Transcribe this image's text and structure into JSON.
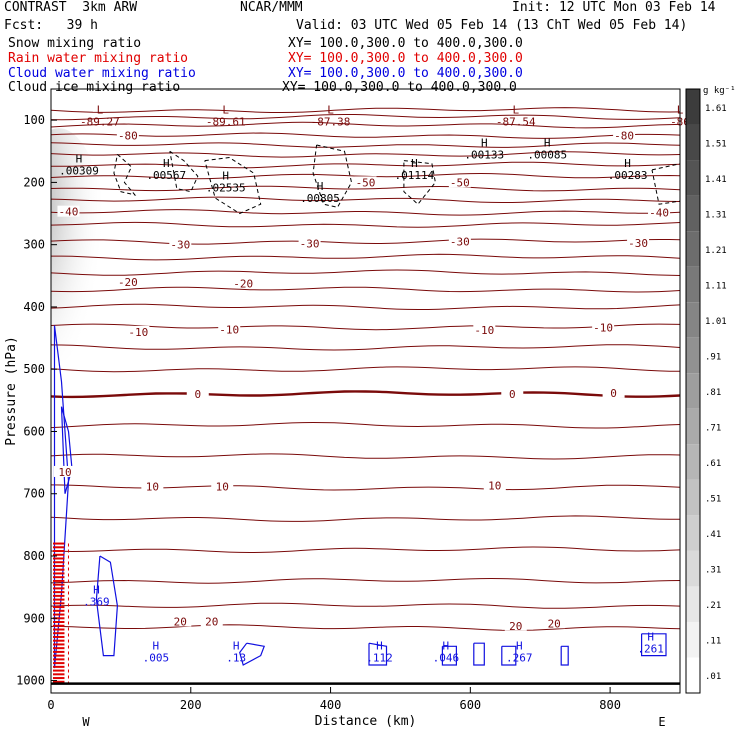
{
  "header": {
    "model": "CONTRAST  3km ARW",
    "center": "NCAR/MMM",
    "init": "Init: 12 UTC Mon 03 Feb 14",
    "fcst": "Fcst:   39 h",
    "valid": "Valid: 03 UTC Wed 05 Feb 14 (13 ChT Wed 05 Feb 14)"
  },
  "fields": [
    {
      "label": "Snow mixing ratio",
      "xy": "XY= 100.0,300.0 to 400.0,300.0",
      "color": "#000000"
    },
    {
      "label": "Rain water mixing ratio",
      "xy": "XY= 100.0,300.0 to 400.0,300.0",
      "color": "#e00000"
    },
    {
      "label": "Cloud water mixing ratio",
      "xy": "XY= 100.0,300.0 to 400.0,300.0",
      "color": "#0000e0"
    },
    {
      "label": "Cloud ice mixing ratio",
      "xy": "XY= 100.0,300.0 to 400.0,300.0",
      "color": "#000000"
    }
  ],
  "colors": {
    "temperature": "#7a0a0a",
    "cloud_water": "#1010e0",
    "rain": "#e00000",
    "ice": "#000000"
  },
  "chart_data": {
    "type": "contour cross-section",
    "xlabel": "Distance (km)",
    "ylabel": "Pressure (hPa)",
    "xlim": [
      0,
      900
    ],
    "ylim": [
      1020,
      50
    ],
    "x_ticks": [
      "0",
      "200",
      "400",
      "600",
      "800"
    ],
    "y_ticks": [
      "100",
      "200",
      "300",
      "400",
      "500",
      "600",
      "700",
      "800",
      "900",
      "1000"
    ],
    "x_end_labels": {
      "left": "W",
      "right": "E"
    },
    "colorbar": {
      "unit": "g kg⁻¹",
      "ticks": [
        "1.61",
        "1.51",
        "1.41",
        "1.31",
        "1.21",
        "1.11",
        "1.01",
        ".91",
        ".81",
        ".71",
        ".61",
        ".51",
        ".41",
        ".31",
        ".21",
        ".11",
        ".01"
      ]
    },
    "isotherms": [
      {
        "p": 84,
        "label": ""
      },
      {
        "p": 95,
        "label": ""
      },
      {
        "p": 108,
        "label": ""
      },
      {
        "p": 125,
        "label": "-80"
      },
      {
        "p": 140,
        "label": ""
      },
      {
        "p": 155,
        "label": ""
      },
      {
        "p": 172,
        "label": ""
      },
      {
        "p": 190,
        "label": ""
      },
      {
        "p": 210,
        "label": "-50"
      },
      {
        "p": 228,
        "label": ""
      },
      {
        "p": 248,
        "label": "-40"
      },
      {
        "p": 268,
        "label": ""
      },
      {
        "p": 295,
        "label": "-30"
      },
      {
        "p": 320,
        "label": ""
      },
      {
        "p": 345,
        "label": ""
      },
      {
        "p": 372,
        "label": "-20"
      },
      {
        "p": 400,
        "label": ""
      },
      {
        "p": 432,
        "label": ""
      },
      {
        "p": 465,
        "label": "-10"
      },
      {
        "p": 500,
        "label": ""
      },
      {
        "p": 540,
        "label": "0",
        "bold": true
      },
      {
        "p": 590,
        "label": ""
      },
      {
        "p": 640,
        "label": ""
      },
      {
        "p": 690,
        "label": "10"
      },
      {
        "p": 740,
        "label": ""
      },
      {
        "p": 790,
        "label": ""
      },
      {
        "p": 840,
        "label": ""
      },
      {
        "p": 880,
        "label": ""
      },
      {
        "p": 915,
        "label": "20"
      }
    ],
    "isotherm_labels": [
      {
        "x": 110,
        "p": 125,
        "text": "-80"
      },
      {
        "x": 820,
        "p": 125,
        "text": "-80"
      },
      {
        "x": 450,
        "p": 200,
        "text": "-50"
      },
      {
        "x": 585,
        "p": 200,
        "text": "-50"
      },
      {
        "x": 25,
        "p": 247,
        "text": "-40"
      },
      {
        "x": 870,
        "p": 248,
        "text": "-40"
      },
      {
        "x": 185,
        "p": 300,
        "text": "-30"
      },
      {
        "x": 370,
        "p": 298,
        "text": "-30"
      },
      {
        "x": 585,
        "p": 295,
        "text": "-30"
      },
      {
        "x": 840,
        "p": 297,
        "text": "-30"
      },
      {
        "x": 110,
        "p": 360,
        "text": "-20"
      },
      {
        "x": 275,
        "p": 362,
        "text": "-20"
      },
      {
        "x": 125,
        "p": 440,
        "text": "-10"
      },
      {
        "x": 255,
        "p": 436,
        "text": "-10"
      },
      {
        "x": 620,
        "p": 437,
        "text": "-10"
      },
      {
        "x": 790,
        "p": 433,
        "text": "-10"
      },
      {
        "x": 210,
        "p": 540,
        "text": "0"
      },
      {
        "x": 660,
        "p": 540,
        "text": "0"
      },
      {
        "x": 805,
        "p": 538,
        "text": "0"
      },
      {
        "x": 20,
        "p": 665,
        "text": "10"
      },
      {
        "x": 145,
        "p": 688,
        "text": "10"
      },
      {
        "x": 245,
        "p": 688,
        "text": "10"
      },
      {
        "x": 635,
        "p": 687,
        "text": "10"
      },
      {
        "x": 185,
        "p": 905,
        "text": "20"
      },
      {
        "x": 230,
        "p": 905,
        "text": "20"
      },
      {
        "x": 665,
        "p": 912,
        "text": "20"
      },
      {
        "x": 720,
        "p": 908,
        "text": "20"
      }
    ],
    "extrema": [
      {
        "x": 70,
        "p": 99,
        "mark": "L",
        "value": "-89.27"
      },
      {
        "x": 250,
        "p": 99,
        "mark": "L",
        "value": "-89.61"
      },
      {
        "x": 400,
        "p": 99,
        "mark": "L",
        "value": "-87.38"
      },
      {
        "x": 665,
        "p": 99,
        "mark": "L",
        "value": "-87.54"
      },
      {
        "x": 900,
        "p": 99,
        "mark": "L",
        "value": "-86"
      },
      {
        "x": 40,
        "p": 178,
        "mark": "H",
        "value": ".00309"
      },
      {
        "x": 165,
        "p": 185,
        "mark": "H",
        "value": ".00567"
      },
      {
        "x": 250,
        "p": 205,
        "mark": "H",
        "value": ".02535"
      },
      {
        "x": 385,
        "p": 222,
        "mark": "H",
        "value": ".00805"
      },
      {
        "x": 520,
        "p": 185,
        "mark": "H",
        "value": ".01114"
      },
      {
        "x": 620,
        "p": 152,
        "mark": "H",
        "value": ".00133"
      },
      {
        "x": 710,
        "p": 152,
        "mark": "H",
        "value": ".00085"
      },
      {
        "x": 825,
        "p": 185,
        "mark": "H",
        "value": ".00283"
      },
      {
        "x": 65,
        "p": 870,
        "mark": "H",
        "value": ".369"
      },
      {
        "x": 150,
        "p": 960,
        "mark": "H",
        "value": ".005"
      },
      {
        "x": 265,
        "p": 960,
        "mark": "H",
        "value": ".13"
      },
      {
        "x": 470,
        "p": 960,
        "mark": "H",
        "value": ".112"
      },
      {
        "x": 565,
        "p": 960,
        "mark": "H",
        "value": ".046"
      },
      {
        "x": 670,
        "p": 960,
        "mark": "H",
        "value": ".267"
      },
      {
        "x": 858,
        "p": 945,
        "mark": "H",
        "value": ".261"
      }
    ],
    "ice_contours": [
      {
        "x": [
          95,
          115,
          105,
          120,
          100,
          90,
          95
        ],
        "p": [
          155,
          175,
          200,
          220,
          215,
          185,
          155
        ]
      },
      {
        "x": [
          170,
          190,
          210,
          200,
          180,
          170
        ],
        "p": [
          150,
          165,
          190,
          215,
          210,
          150
        ]
      },
      {
        "x": [
          220,
          255,
          290,
          300,
          270,
          235,
          220
        ],
        "p": [
          165,
          160,
          185,
          235,
          250,
          225,
          165
        ]
      },
      {
        "x": [
          380,
          420,
          430,
          410,
          390,
          375,
          380
        ],
        "p": [
          140,
          150,
          200,
          240,
          235,
          185,
          140
        ]
      },
      {
        "x": [
          505,
          545,
          550,
          525,
          505,
          505
        ],
        "p": [
          165,
          170,
          200,
          235,
          215,
          165
        ]
      },
      {
        "x": [
          860,
          900,
          900,
          870,
          860
        ],
        "p": [
          180,
          170,
          230,
          235,
          180
        ]
      }
    ],
    "cloud_water_contours": [
      {
        "x": [
          5,
          15,
          25,
          15,
          5,
          5
        ],
        "p": [
          430,
          520,
          680,
          860,
          980,
          430
        ]
      },
      {
        "x": [
          15,
          25,
          30,
          20,
          15
        ],
        "p": [
          560,
          600,
          660,
          700,
          560
        ]
      },
      {
        "x": [
          70,
          85,
          95,
          90,
          75,
          65,
          70
        ],
        "p": [
          800,
          810,
          880,
          960,
          960,
          870,
          800
        ]
      },
      {
        "x": [
          280,
          305,
          300,
          275,
          270,
          280
        ],
        "p": [
          940,
          945,
          960,
          975,
          955,
          940
        ]
      },
      {
        "x": [
          455,
          480,
          480,
          455,
          455
        ],
        "p": [
          940,
          945,
          975,
          975,
          940
        ]
      },
      {
        "x": [
          560,
          580,
          580,
          560,
          560
        ],
        "p": [
          945,
          945,
          975,
          975,
          945
        ]
      },
      {
        "x": [
          605,
          620,
          620,
          605,
          605
        ],
        "p": [
          940,
          940,
          975,
          975,
          940
        ]
      },
      {
        "x": [
          645,
          665,
          665,
          645,
          645
        ],
        "p": [
          945,
          945,
          975,
          975,
          945
        ]
      },
      {
        "x": [
          730,
          740,
          740,
          730,
          730
        ],
        "p": [
          945,
          945,
          975,
          975,
          945
        ]
      },
      {
        "x": [
          845,
          880,
          880,
          845,
          845
        ],
        "p": [
          925,
          925,
          960,
          960,
          925
        ]
      }
    ],
    "rain": {
      "x": [
        0,
        25
      ],
      "p": [
        780,
        1005
      ],
      "ref_x": 25
    },
    "snow_shading": {
      "x": [
        0,
        90
      ],
      "p": [
        130,
        470
      ],
      "max": 1.0
    },
    "surface_line": {
      "p": 1005
    }
  }
}
